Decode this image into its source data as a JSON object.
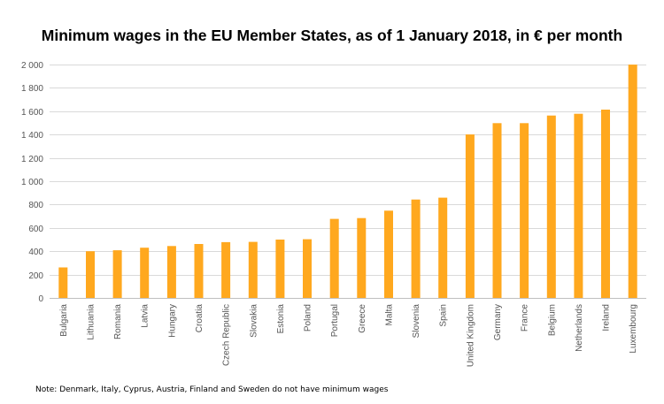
{
  "chart_data": {
    "type": "bar",
    "title": "Minimum wages in the EU Member States, as of 1 January 2018, in € per month",
    "xlabel": "",
    "ylabel": "",
    "ylim": [
      0,
      2000
    ],
    "yticks": [
      0,
      200,
      400,
      600,
      800,
      1000,
      1200,
      1400,
      1600,
      1800,
      2000
    ],
    "ytick_labels": [
      "0",
      "200",
      "400",
      "600",
      "800",
      "1 000",
      "1 200",
      "1 400",
      "1 600",
      "1 800",
      "2 000"
    ],
    "grid": true,
    "legend": "none",
    "bar_color": "#FFA81E",
    "categories": [
      "Bulgaria",
      "Lithuania",
      "Romania",
      "Latvia",
      "Hungary",
      "Croatia",
      "Czech Republic",
      "Slovakia",
      "Estonia",
      "Poland",
      "Portugal",
      "Greece",
      "Malta",
      "Slovenia",
      "Spain",
      "United Kingdom",
      "Germany",
      "France",
      "Belgium",
      "Netherlands",
      "Ireland",
      "Luxembourg"
    ],
    "values": [
      261,
      400,
      408,
      430,
      445,
      462,
      478,
      480,
      500,
      503,
      677,
      684,
      748,
      843,
      859,
      1401,
      1498,
      1498,
      1563,
      1578,
      1614,
      1999
    ]
  },
  "note": "Note:  Denmark, Italy, Cyprus, Austria, Finland and Sweden do not have minimum wages"
}
